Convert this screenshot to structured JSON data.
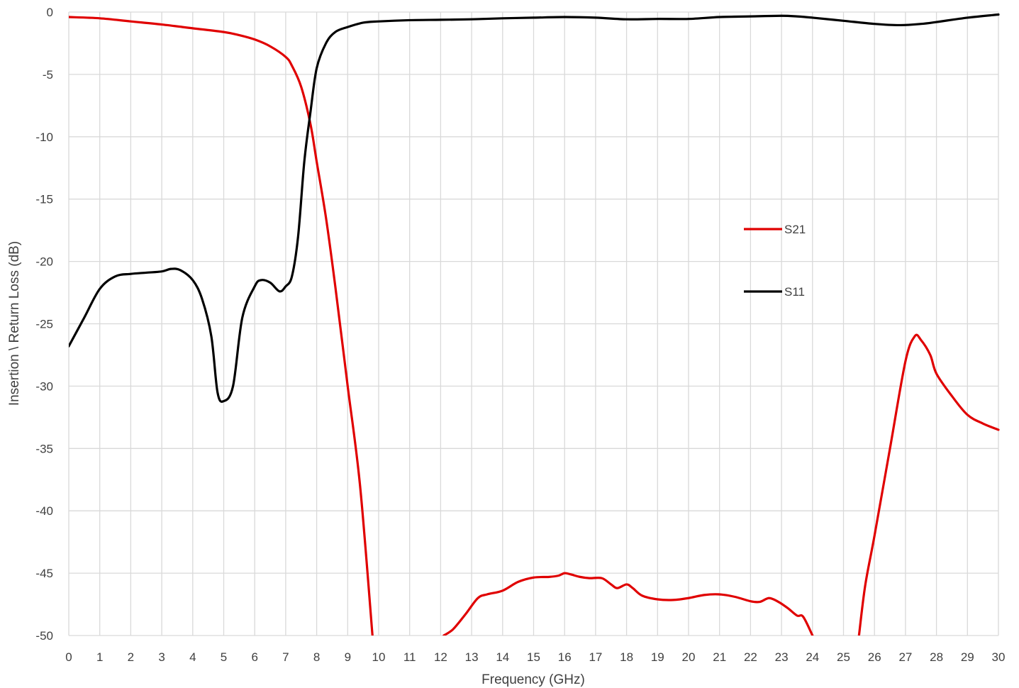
{
  "chart_data": {
    "type": "line",
    "title": "",
    "xlabel": "Frequency (GHz)",
    "ylabel": "Insertion \\ Return Loss (dB)",
    "xlim": [
      0,
      30
    ],
    "ylim": [
      -50,
      0
    ],
    "xticks": [
      "0",
      "1",
      "2",
      "3",
      "4",
      "5",
      "6",
      "7",
      "8",
      "9",
      "10",
      "11",
      "12",
      "13",
      "14",
      "15",
      "16",
      "17",
      "18",
      "19",
      "20",
      "21",
      "22",
      "23",
      "24",
      "25",
      "26",
      "27",
      "28",
      "29",
      "30"
    ],
    "yticks": [
      "0",
      "-5",
      "-10",
      "-15",
      "-20",
      "-25",
      "-30",
      "-35",
      "-40",
      "-45",
      "-50"
    ],
    "grid": true,
    "legend_position": "right-middle",
    "series": [
      {
        "name": "S21",
        "color": "#e00000",
        "points": [
          [
            0,
            -0.4
          ],
          [
            1,
            -0.5
          ],
          [
            2,
            -0.75
          ],
          [
            3,
            -1.0
          ],
          [
            4,
            -1.3
          ],
          [
            5,
            -1.6
          ],
          [
            5.5,
            -1.85
          ],
          [
            6,
            -2.2
          ],
          [
            6.5,
            -2.75
          ],
          [
            7,
            -3.6
          ],
          [
            7.2,
            -4.3
          ],
          [
            7.5,
            -6.0
          ],
          [
            7.8,
            -9.0
          ],
          [
            8.0,
            -12.0
          ],
          [
            8.3,
            -16.5
          ],
          [
            8.6,
            -22.0
          ],
          [
            9.0,
            -30.0
          ],
          [
            9.4,
            -38.0
          ],
          [
            9.8,
            -50.0
          ]
        ],
        "points_2": [
          [
            12.1,
            -50.0
          ],
          [
            12.4,
            -49.5
          ],
          [
            12.8,
            -48.3
          ],
          [
            13.2,
            -47.0
          ],
          [
            13.5,
            -46.7
          ],
          [
            14.0,
            -46.4
          ],
          [
            14.5,
            -45.7
          ],
          [
            15.0,
            -45.35
          ],
          [
            15.5,
            -45.3
          ],
          [
            15.8,
            -45.2
          ],
          [
            16.0,
            -45.0
          ],
          [
            16.2,
            -45.1
          ],
          [
            16.5,
            -45.3
          ],
          [
            16.8,
            -45.4
          ],
          [
            17.2,
            -45.4
          ],
          [
            17.5,
            -45.9
          ],
          [
            17.7,
            -46.2
          ],
          [
            18.0,
            -45.9
          ],
          [
            18.2,
            -46.2
          ],
          [
            18.5,
            -46.8
          ],
          [
            19.0,
            -47.1
          ],
          [
            19.5,
            -47.15
          ],
          [
            20.0,
            -47.0
          ],
          [
            20.5,
            -46.75
          ],
          [
            21.0,
            -46.7
          ],
          [
            21.5,
            -46.9
          ],
          [
            22.0,
            -47.25
          ],
          [
            22.3,
            -47.3
          ],
          [
            22.6,
            -47.0
          ],
          [
            22.9,
            -47.3
          ],
          [
            23.2,
            -47.8
          ],
          [
            23.5,
            -48.4
          ],
          [
            23.7,
            -48.5
          ],
          [
            24.0,
            -50.0
          ]
        ],
        "points_3": [
          [
            25.5,
            -50.0
          ],
          [
            25.7,
            -46.0
          ],
          [
            26.0,
            -42.0
          ],
          [
            26.5,
            -35.0
          ],
          [
            27.0,
            -28.0
          ],
          [
            27.3,
            -26.0
          ],
          [
            27.5,
            -26.3
          ],
          [
            27.8,
            -27.5
          ],
          [
            28.0,
            -29.0
          ],
          [
            28.5,
            -30.8
          ],
          [
            29.0,
            -32.3
          ],
          [
            29.5,
            -33.0
          ],
          [
            30.0,
            -33.5
          ]
        ]
      },
      {
        "name": "S11",
        "color": "#000000",
        "points": [
          [
            0,
            -26.8
          ],
          [
            0.5,
            -24.5
          ],
          [
            1.0,
            -22.2
          ],
          [
            1.5,
            -21.2
          ],
          [
            2.0,
            -21.0
          ],
          [
            2.5,
            -20.9
          ],
          [
            3.0,
            -20.8
          ],
          [
            3.3,
            -20.6
          ],
          [
            3.6,
            -20.7
          ],
          [
            4.0,
            -21.5
          ],
          [
            4.3,
            -23.0
          ],
          [
            4.6,
            -26.0
          ],
          [
            4.8,
            -30.5
          ],
          [
            5.0,
            -31.2
          ],
          [
            5.3,
            -30.0
          ],
          [
            5.6,
            -24.5
          ],
          [
            6.0,
            -22.0
          ],
          [
            6.2,
            -21.5
          ],
          [
            6.5,
            -21.7
          ],
          [
            6.8,
            -22.4
          ],
          [
            7.0,
            -22.0
          ],
          [
            7.2,
            -21.2
          ],
          [
            7.4,
            -18.0
          ],
          [
            7.6,
            -12.0
          ],
          [
            7.8,
            -8.0
          ],
          [
            8.0,
            -4.5
          ],
          [
            8.3,
            -2.5
          ],
          [
            8.6,
            -1.6
          ],
          [
            9.0,
            -1.2
          ],
          [
            9.5,
            -0.85
          ],
          [
            10.0,
            -0.75
          ],
          [
            11.0,
            -0.65
          ],
          [
            12.0,
            -0.62
          ],
          [
            13.0,
            -0.58
          ],
          [
            14.0,
            -0.5
          ],
          [
            15.0,
            -0.45
          ],
          [
            16.0,
            -0.4
          ],
          [
            17.0,
            -0.45
          ],
          [
            18.0,
            -0.58
          ],
          [
            19.0,
            -0.55
          ],
          [
            20.0,
            -0.55
          ],
          [
            21.0,
            -0.4
          ],
          [
            22.0,
            -0.35
          ],
          [
            23.0,
            -0.3
          ],
          [
            23.5,
            -0.35
          ],
          [
            24.0,
            -0.45
          ],
          [
            25.0,
            -0.7
          ],
          [
            26.0,
            -0.95
          ],
          [
            26.8,
            -1.05
          ],
          [
            27.5,
            -0.95
          ],
          [
            28.0,
            -0.8
          ],
          [
            29.0,
            -0.45
          ],
          [
            30.0,
            -0.2
          ]
        ]
      }
    ]
  }
}
